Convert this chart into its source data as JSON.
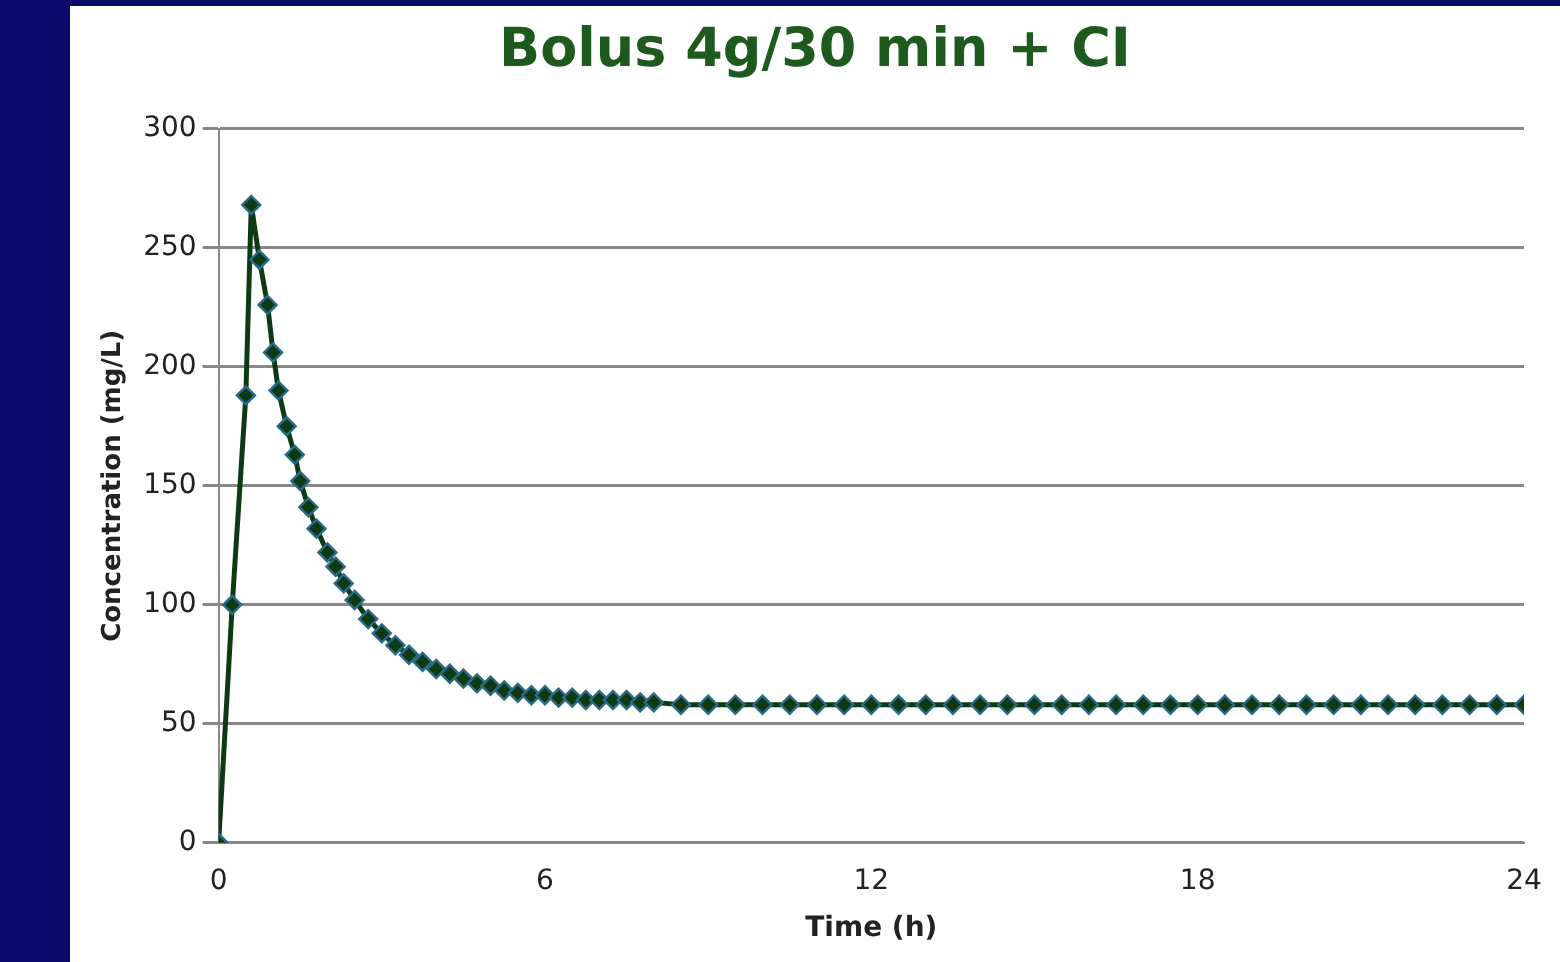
{
  "chart_data": {
    "type": "line",
    "title": "Bolus 4g/30 min + CI",
    "xlabel": "Time (h)",
    "ylabel": "Concentration (mg/L)",
    "x": [
      0,
      0.25,
      0.5,
      0.6,
      0.75,
      0.9,
      1,
      1.1,
      1.25,
      1.4,
      1.5,
      1.65,
      1.8,
      2,
      2.15,
      2.3,
      2.5,
      2.75,
      3,
      3.25,
      3.5,
      3.75,
      4,
      4.25,
      4.5,
      4.75,
      5,
      5.25,
      5.5,
      5.75,
      6,
      6.25,
      6.5,
      6.75,
      7,
      7.25,
      7.5,
      7.75,
      8,
      8.5,
      9,
      9.5,
      10,
      10.5,
      11,
      11.5,
      12,
      12.5,
      13,
      13.5,
      14,
      14.5,
      15,
      15.5,
      16,
      16.5,
      17,
      17.5,
      18,
      18.5,
      19,
      19.5,
      20,
      20.5,
      21,
      21.5,
      22,
      22.5,
      23,
      23.5,
      24
    ],
    "series": [
      {
        "color": "#2a6a8a",
        "values": [
          0,
          100,
          188,
          268,
          245,
          226,
          206,
          190,
          175,
          163,
          152,
          141,
          132,
          122,
          116,
          109,
          102,
          94,
          88,
          83,
          79,
          76,
          73,
          71,
          69,
          67,
          66,
          64,
          63,
          62,
          62,
          61,
          61,
          60,
          60,
          60,
          60,
          59,
          59,
          58,
          58,
          58,
          58,
          58,
          58,
          58,
          58,
          58,
          58,
          58,
          58,
          58,
          58,
          58,
          58,
          58,
          58,
          58,
          58,
          58,
          58,
          58,
          58,
          58,
          58,
          58,
          58,
          58,
          58,
          58,
          58
        ]
      }
    ],
    "xlim": [
      0,
      24
    ],
    "xticks": [
      0,
      6,
      12,
      18,
      24
    ],
    "ylim": [
      0,
      300
    ],
    "yticks": [
      0,
      50,
      100,
      150,
      200,
      250,
      300
    ],
    "grid": "y",
    "legend": false,
    "marker": "diamond",
    "line_style": "solid"
  }
}
